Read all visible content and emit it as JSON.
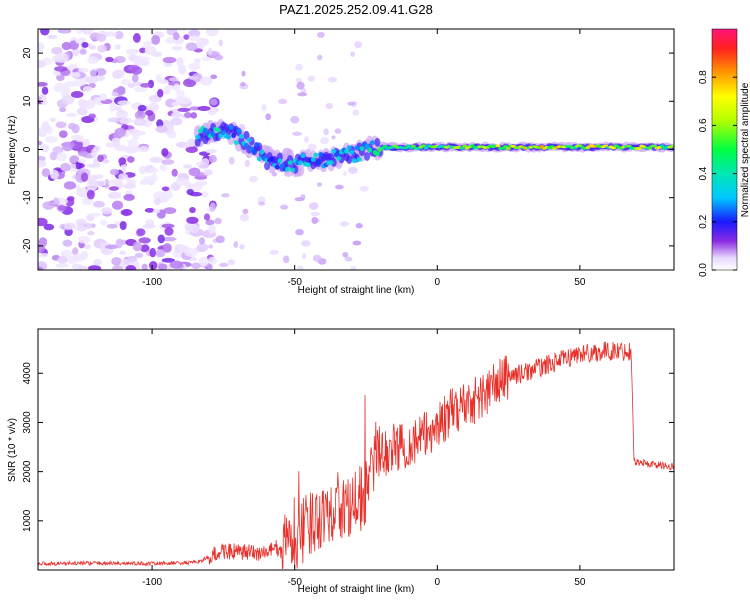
{
  "title": "PAZ1.2025.252.09.41.G28",
  "colors": {
    "line": "#e8302a",
    "axis": "#000000",
    "background": "#ffffff"
  },
  "chart_data": [
    {
      "type": "heatmap",
      "xlabel": "Height of straight line (km)",
      "ylabel": "Frequency (Hz)",
      "xlim": [
        -140,
        83
      ],
      "ylim": [
        -25,
        25
      ],
      "xticks": [
        -100,
        -50,
        0,
        50
      ],
      "xtick_labels": [
        "-100",
        "-50",
        "0",
        "50"
      ],
      "yticks": [
        20,
        10,
        0,
        -10,
        -20
      ],
      "ytick_labels": [
        "20",
        "10",
        "0",
        "-10",
        "-20"
      ],
      "colorbar": {
        "label": "Normalized spectral amplitude",
        "range": [
          0,
          1
        ],
        "ticks": [
          0.0,
          0.2,
          0.4,
          0.6,
          0.8
        ],
        "tick_labels": [
          "0.0",
          "0.2",
          "0.4",
          "0.6",
          "0.8"
        ]
      },
      "ridge": {
        "description_points": [
          {
            "x": -82,
            "freq": 3,
            "amp": 0.35
          },
          {
            "x": -75,
            "freq": 4,
            "amp": 0.35
          },
          {
            "x": -68,
            "freq": 2,
            "amp": 0.3
          },
          {
            "x": -60,
            "freq": -2,
            "amp": 0.3
          },
          {
            "x": -50,
            "freq": -3,
            "amp": 0.35
          },
          {
            "x": -40,
            "freq": -2,
            "amp": 0.3
          },
          {
            "x": -30,
            "freq": -1,
            "amp": 0.35
          },
          {
            "x": -20,
            "freq": 0.5,
            "amp": 0.45
          },
          {
            "x": 0,
            "freq": 0.5,
            "amp": 0.55
          },
          {
            "x": 20,
            "freq": 0.5,
            "amp": 0.6
          },
          {
            "x": 40,
            "freq": 0.5,
            "amp": 0.7
          },
          {
            "x": 60,
            "freq": 0.5,
            "amp": 0.65
          },
          {
            "x": 83,
            "freq": 0.5,
            "amp": 0.6
          }
        ]
      }
    },
    {
      "type": "line",
      "xlabel": "Height of straight line (km)",
      "ylabel": "SNR (10 * v/v)",
      "xlim": [
        -140,
        83
      ],
      "ylim": [
        0,
        4900
      ],
      "xticks": [
        -100,
        -50,
        0,
        50
      ],
      "xtick_labels": [
        "-100",
        "-50",
        "0",
        "50"
      ],
      "yticks": [
        1000,
        2000,
        3000,
        4000
      ],
      "ytick_labels": [
        "1000",
        "2000",
        "3000",
        "4000"
      ],
      "series": [
        {
          "name": "SNR",
          "x": [
            -140,
            -120,
            -100,
            -85,
            -80,
            -75,
            -70,
            -60,
            -50,
            -45,
            -40,
            -35,
            -30,
            -25,
            -22,
            -20,
            -15,
            -10,
            -5,
            0,
            5,
            10,
            15,
            20,
            25,
            30,
            40,
            50,
            60,
            68,
            69,
            75,
            83
          ],
          "values": [
            130,
            140,
            130,
            150,
            250,
            400,
            350,
            350,
            600,
            900,
            1200,
            1300,
            1200,
            1600,
            2200,
            2300,
            2500,
            2550,
            2700,
            2950,
            3200,
            3400,
            3500,
            3750,
            3950,
            4000,
            4200,
            4400,
            4450,
            4450,
            2200,
            2150,
            2100
          ]
        }
      ]
    }
  ]
}
